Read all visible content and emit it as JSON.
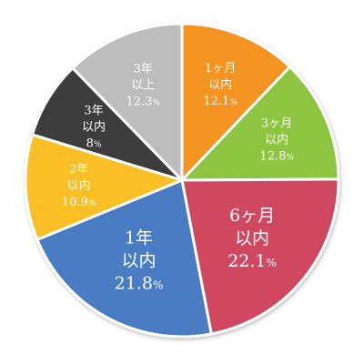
{
  "chart_data": {
    "type": "pie",
    "start": "12 o'clock",
    "direction": "clockwise",
    "slices": [
      {
        "label_lines": [
          "1ヶ月",
          "以内"
        ],
        "value": 12.1,
        "value_text": "12.1",
        "unit": "%",
        "color": "#f39324",
        "text_color": "#ffffff",
        "size": "small"
      },
      {
        "label_lines": [
          "3ヶ月",
          "以内"
        ],
        "value": 12.8,
        "value_text": "12.8",
        "unit": "%",
        "color": "#8dc540",
        "text_color": "#ffffff",
        "size": "small"
      },
      {
        "label_lines": [
          "6ヶ月",
          "以内"
        ],
        "value": 22.1,
        "value_text": "22.1",
        "unit": "%",
        "color": "#d04660",
        "text_color": "#ffffff",
        "size": "large"
      },
      {
        "label_lines": [
          "1年",
          "以内"
        ],
        "value": 21.8,
        "value_text": "21.8",
        "unit": "%",
        "color": "#4a7cc2",
        "text_color": "#ffffff",
        "size": "large"
      },
      {
        "label_lines": [
          "2年",
          "以内"
        ],
        "value": 10.9,
        "value_text": "10.9",
        "unit": "%",
        "color": "#fbbf25",
        "text_color": "#ffffff",
        "size": "small"
      },
      {
        "label_lines": [
          "3年",
          "以内"
        ],
        "value": 8,
        "value_text": "8",
        "unit": "%",
        "color": "#3e3e3e",
        "text_color": "#ffffff",
        "size": "small"
      },
      {
        "label_lines": [
          "3年",
          "以上"
        ],
        "value": 12.3,
        "value_text": "12.3",
        "unit": "%",
        "color": "#bdbdbd",
        "text_color": "#ffffff",
        "size": "small"
      }
    ]
  }
}
